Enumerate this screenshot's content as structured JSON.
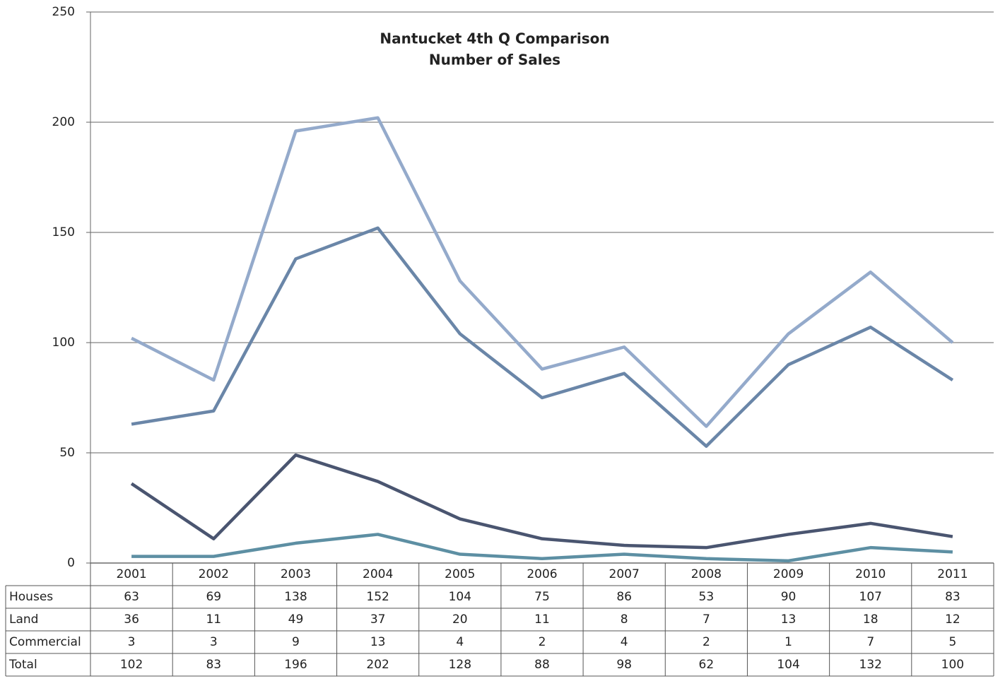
{
  "chart_data": {
    "type": "line",
    "title": "Nantucket 4th Q Comparison",
    "subtitle": "Number of Sales",
    "categories": [
      "2001",
      "2002",
      "2003",
      "2004",
      "2005",
      "2006",
      "2007",
      "2008",
      "2009",
      "2010",
      "2011"
    ],
    "series": [
      {
        "name": "Houses",
        "color": "#6a86a8",
        "values": [
          63,
          69,
          138,
          152,
          104,
          75,
          86,
          53,
          90,
          107,
          83
        ]
      },
      {
        "name": "Land",
        "color": "#4a5570",
        "values": [
          36,
          11,
          49,
          37,
          20,
          11,
          8,
          7,
          13,
          18,
          12
        ]
      },
      {
        "name": "Commercial",
        "color": "#5d8fa3",
        "values": [
          3,
          3,
          9,
          13,
          4,
          2,
          4,
          2,
          1,
          7,
          5
        ]
      },
      {
        "name": "Total",
        "color": "#94aacb",
        "values": [
          102,
          83,
          196,
          202,
          128,
          88,
          98,
          62,
          104,
          132,
          100
        ]
      }
    ],
    "ylim": [
      0,
      250
    ],
    "yticks": [
      0,
      50,
      100,
      150,
      200,
      250
    ],
    "grid": true
  }
}
